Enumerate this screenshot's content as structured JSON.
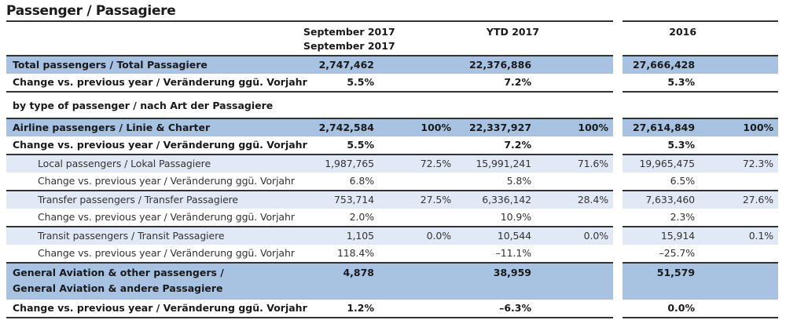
{
  "title": "Passenger / Passagiere",
  "columns": {
    "sep": "September 2017",
    "sep2": "September 2017",
    "ytd": "YTD 2017",
    "y2016": "2016"
  },
  "colors": {
    "dark_row": "#a8c3e2",
    "light_row": "#e2e9f6"
  },
  "rows": [
    {
      "style": "bold dark",
      "label": "Total passengers / Total Passagiere",
      "sep": "2,747,462",
      "sep_pct": "",
      "ytd": "22,376,886",
      "ytd_pct": "",
      "y2016": "27,666,428",
      "y2016_pct": ""
    },
    {
      "style": "bold line",
      "label": "Change vs. previous year / Veränderung ggü. Vorjahr",
      "sep": "5.5%",
      "sep_pct": "",
      "ytd": "7.2%",
      "ytd_pct": "",
      "y2016": "5.3%",
      "y2016_pct": ""
    },
    {
      "style": "section",
      "label": "by type of passenger / nach Art der Passagiere",
      "sep": "",
      "sep_pct": "",
      "ytd": "",
      "ytd_pct": "",
      "y2016": "",
      "y2016_pct": ""
    },
    {
      "style": "bold dark",
      "label": "Airline passengers / Linie & Charter",
      "sep": "2,742,584",
      "sep_pct": "100%",
      "ytd": "22,337,927",
      "ytd_pct": "100%",
      "y2016": "27,614,849",
      "y2016_pct": "100%"
    },
    {
      "style": "bold line",
      "label": "Change vs. previous year / Veränderung ggü. Vorjahr",
      "sep": "5.5%",
      "sep_pct": "",
      "ytd": "7.2%",
      "ytd_pct": "",
      "y2016": "5.3%",
      "y2016_pct": ""
    },
    {
      "style": "sub light",
      "label": "Local passengers / Lokal Passagiere",
      "sep": "1,987,765",
      "sep_pct": "72.5%",
      "ytd": "15,991,241",
      "ytd_pct": "71.6%",
      "y2016": "19,965,475",
      "y2016_pct": "72.3%"
    },
    {
      "style": "sub line",
      "label": "Change vs. previous year / Veränderung ggü. Vorjahr",
      "sep": "6.8%",
      "sep_pct": "",
      "ytd": "5.8%",
      "ytd_pct": "",
      "y2016": "6.5%",
      "y2016_pct": ""
    },
    {
      "style": "sub light",
      "label": "Transfer passengers / Transfer Passagiere",
      "sep": "753,714",
      "sep_pct": "27.5%",
      "ytd": "6,336,142",
      "ytd_pct": "28.4%",
      "y2016": "7,633,460",
      "y2016_pct": "27.6%"
    },
    {
      "style": "sub line",
      "label": "Change vs. previous year / Veränderung ggü. Vorjahr",
      "sep": "2.0%",
      "sep_pct": "",
      "ytd": "10.9%",
      "ytd_pct": "",
      "y2016": "2.3%",
      "y2016_pct": ""
    },
    {
      "style": "sub light",
      "label": "Transit passengers / Transit Passagiere",
      "sep": "1,105",
      "sep_pct": "0.0%",
      "ytd": "10,544",
      "ytd_pct": "0.0%",
      "y2016": "15,914",
      "y2016_pct": "0.1%"
    },
    {
      "style": "sub line",
      "label": "Change vs. previous year / Veränderung ggü. Vorjahr",
      "sep": "118.4%",
      "sep_pct": "",
      "ytd": "–11.1%",
      "ytd_pct": "",
      "y2016": "–25.7%",
      "y2016_pct": ""
    },
    {
      "style": "bold dark tall",
      "label": "General Aviation & other passengers /",
      "label2": "General Aviation & andere Passagiere",
      "sep": "4,878",
      "sep_pct": "",
      "ytd": "38,959",
      "ytd_pct": "",
      "y2016": "51,579",
      "y2016_pct": ""
    },
    {
      "style": "bold line",
      "label": "Change vs. previous year / Veränderung ggü. Vorjahr",
      "sep": "1.2%",
      "sep_pct": "",
      "ytd": "–6.3%",
      "ytd_pct": "",
      "y2016": "0.0%",
      "y2016_pct": ""
    }
  ]
}
